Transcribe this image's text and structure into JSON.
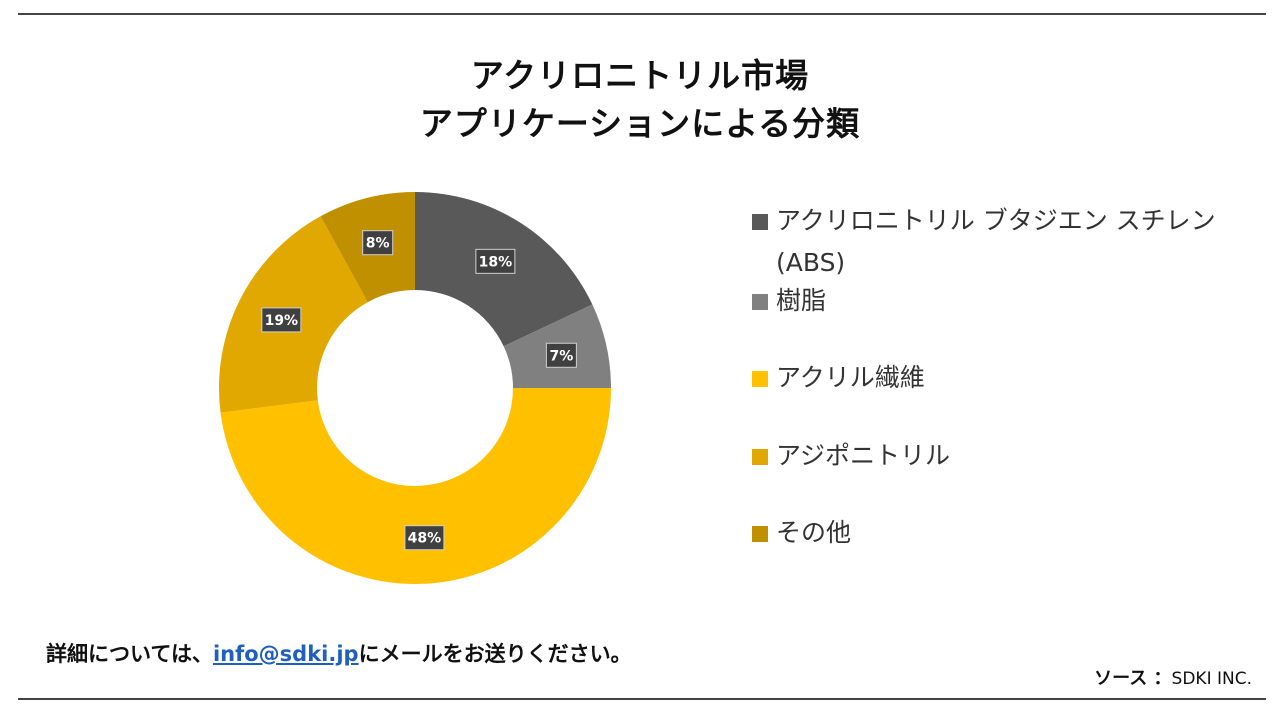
{
  "chart_data": {
    "type": "pie",
    "subtype": "donut",
    "title_line1": "アクリロニトリル市場",
    "title_line2": "アプリケーションによる分類",
    "categories": [
      "アクリロニトリル ブタジエン スチレン (ABS)",
      "樹脂",
      "アクリル繊維",
      "アジポニトリル",
      "その他"
    ],
    "values": [
      18,
      7,
      48,
      19,
      8
    ],
    "value_labels": [
      "18%",
      "7%",
      "48%",
      "19%",
      "8%"
    ],
    "colors": [
      "#595959",
      "#808080",
      "#FFC000",
      "#E0A800",
      "#C09000"
    ],
    "legend_position": "right"
  },
  "footer": {
    "note_prefix": "詳細については、",
    "email": "info@sdki.jp",
    "note_suffix": "にメールをお送りください。",
    "source_label": "ソース ：",
    "source_value": "SDKI INC."
  }
}
